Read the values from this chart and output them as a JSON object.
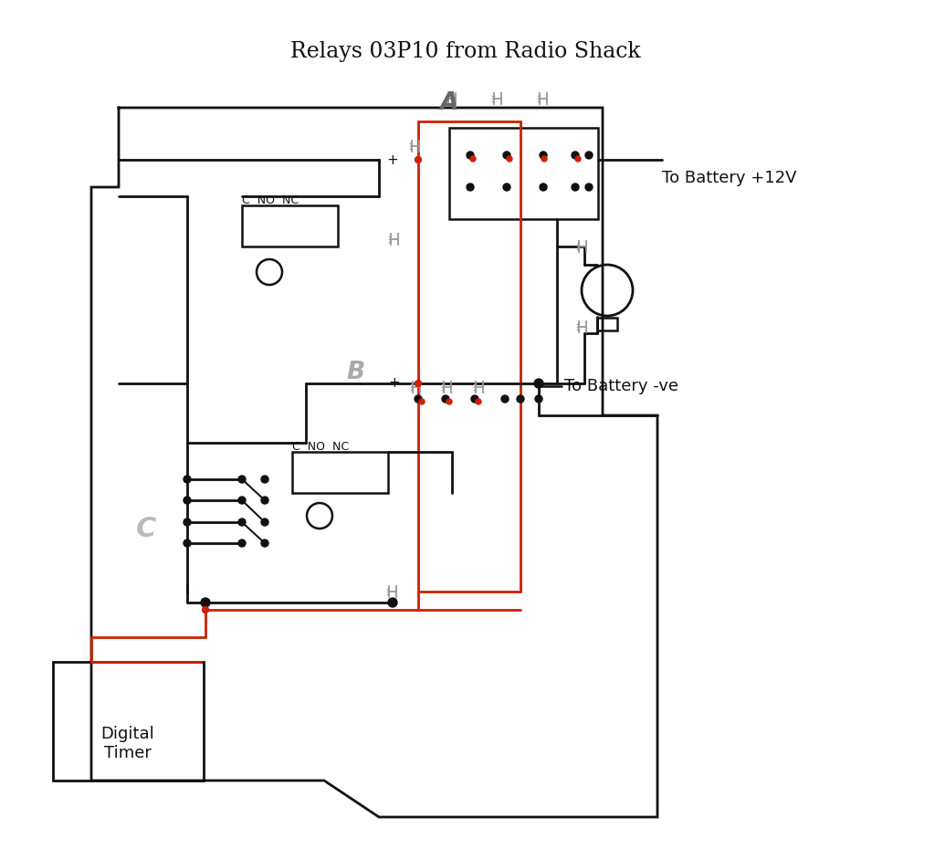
{
  "title": "Relays 03P10 from Radio Shack",
  "bg_color": "#ffffff",
  "text_color": "#111111",
  "wire_black": "#111111",
  "wire_red": "#cc2200",
  "label_battery_pos": "To Battery +12V",
  "label_battery_neg": "To Battery -ve",
  "label_timer": "Digital\nTimer",
  "label_A": "A",
  "label_B": "B",
  "label_C": "C",
  "label_C_NO_NC_1": "C  NO  NC",
  "label_C_NO_NC_2": "C  NO  NC"
}
